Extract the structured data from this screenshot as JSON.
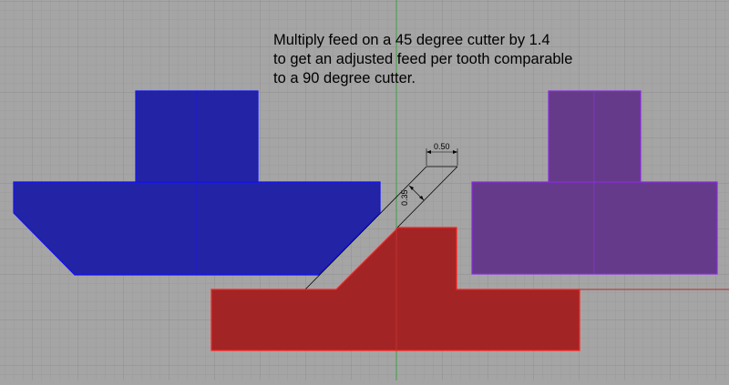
{
  "note": {
    "lines": [
      "Multiply feed on a 45 degree cutter by 1.4",
      "to get an adjusted feed per tooth comparable",
      "to a 90 degree cutter."
    ]
  },
  "dimensions": {
    "horizontal": "0.50",
    "perpendicular": "0.35"
  },
  "colors": {
    "background": "#a5a5a5",
    "grid_minor": "#9b9b9b",
    "grid_major": "#8e8e8e",
    "axis_y": "#3fa03f",
    "axis_x": "#b03030",
    "cutter_45": "#2323a5",
    "cutter_45_outline": "#1010ff",
    "workpiece": "#a32424",
    "workpiece_outline": "#ff2020",
    "cutter_90": "#663a8a",
    "cutter_90_outline": "#8a2be2"
  }
}
